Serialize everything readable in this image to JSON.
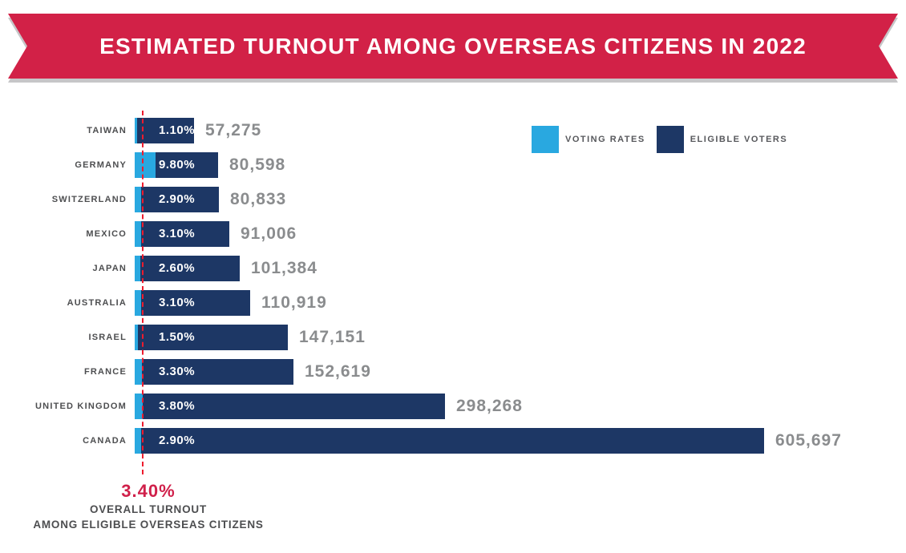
{
  "banner": {
    "title": "ESTIMATED TURNOUT AMONG OVERSEAS CITIZENS IN 2022"
  },
  "legend": {
    "items": [
      {
        "label": "VOTING RATES",
        "color": "#29a8e0"
      },
      {
        "label": "ELIGIBLE VOTERS",
        "color": "#1d3765"
      }
    ]
  },
  "colors": {
    "banner_red": "#d22147",
    "navy": "#1d3765",
    "light_blue": "#29a8e0",
    "dashed_line_red": "#ee1c2e",
    "annotation_red": "#d0204a",
    "country_label_gray": "#4d4e50",
    "value_label_gray": "#8a8c8e"
  },
  "chart_data": {
    "type": "bar",
    "orientation": "horizontal",
    "title": "ESTIMATED TURNOUT AMONG OVERSEAS CITIZENS IN 2022",
    "categories": [
      "TAIWAN",
      "GERMANY",
      "SWITZERLAND",
      "MEXICO",
      "JAPAN",
      "AUSTRALIA",
      "ISRAEL",
      "FRANCE",
      "UNITED KINGDOM",
      "CANADA"
    ],
    "series": [
      {
        "name": "Voting Rates",
        "unit": "%",
        "color": "#29a8e0",
        "values": [
          1.1,
          9.8,
          2.9,
          3.1,
          2.6,
          3.1,
          1.5,
          3.3,
          3.8,
          2.9
        ]
      },
      {
        "name": "Eligible Voters",
        "color": "#1d3765",
        "values": [
          57275,
          80598,
          80833,
          91006,
          101384,
          110919,
          147151,
          152619,
          298268,
          605697
        ]
      }
    ],
    "rate_labels": [
      "1.10%",
      "9.80%",
      "2.90%",
      "3.10%",
      "2.60%",
      "3.10%",
      "1.50%",
      "3.30%",
      "3.80%",
      "2.90%"
    ],
    "voter_labels": [
      "57,275",
      "80,598",
      "80,833",
      "91,006",
      "101,384",
      "110,919",
      "147,151",
      "152,619",
      "298,268",
      "605,697"
    ],
    "legend_position": "top-right",
    "grid": false,
    "reference_line": {
      "value": 3.4,
      "label": "3.40%",
      "sublabel1": "OVERALL TURNOUT",
      "sublabel2": "AMONG ELIGIBLE OVERSEAS CITIZENS",
      "color": "#ee1c2e"
    }
  }
}
